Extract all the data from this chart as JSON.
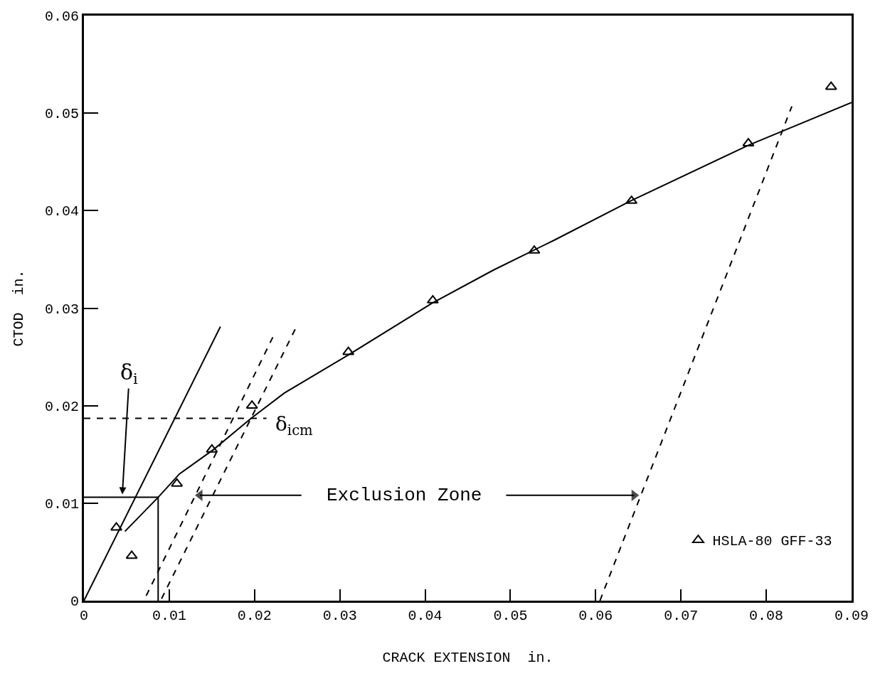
{
  "chart_data": {
    "type": "scatter",
    "xlabel": "CRACK EXTENSION  in.",
    "ylabel": "CTOD  in.",
    "xlim": [
      0,
      0.09
    ],
    "xticks": [
      0,
      0.01,
      0.02,
      0.03,
      0.04,
      0.05,
      0.06,
      0.07,
      0.08,
      0.09
    ],
    "ylim": [
      0,
      0.06
    ],
    "yticks": [
      0,
      0.01,
      0.02,
      0.03,
      0.04,
      0.05,
      0.06
    ],
    "grid": false,
    "legend": "bottom right",
    "series": [
      {
        "name": "HSLA-80 GFF-33",
        "type": "scatter",
        "marker": "triangle",
        "color": "#000000",
        "x": [
          0.0038,
          0.0056,
          0.0109,
          0.015,
          0.0197,
          0.031,
          0.0409,
          0.0528,
          0.0642,
          0.0779,
          0.0876
        ],
        "values": [
          0.0075,
          0.0046,
          0.012,
          0.0155,
          0.02,
          0.0255,
          0.0308,
          0.0359,
          0.041,
          0.0469,
          0.0527
        ]
      },
      {
        "type": "line",
        "marker": "none",
        "line_style": "solid",
        "color": "#000000",
        "x": [
          0.0048,
          0.0087,
          0.0112,
          0.0152,
          0.0196,
          0.0235,
          0.031,
          0.0408,
          0.048,
          0.0552,
          0.0641,
          0.0779,
          0.09
        ],
        "values": [
          0.0071,
          0.0106,
          0.013,
          0.0155,
          0.0187,
          0.0213,
          0.0252,
          0.0305,
          0.0339,
          0.037,
          0.041,
          0.0467,
          0.0511
        ]
      },
      {
        "type": "line",
        "marker": "none",
        "line_style": "solid",
        "color": "#000000",
        "x": [
          0,
          0.016
        ],
        "values": [
          0,
          0.0281
        ]
      },
      {
        "type": "line",
        "marker": "none",
        "line_style": "dashed",
        "color": "#000000",
        "x": [
          0.0073,
          0.0223
        ],
        "values": [
          0.0005,
          0.0273
        ]
      },
      {
        "type": "line",
        "marker": "none",
        "line_style": "dashed",
        "color": "#000000",
        "x": [
          0.0091,
          0.0248
        ],
        "values": [
          0.0002,
          0.0279
        ]
      },
      {
        "type": "line",
        "marker": "none",
        "line_style": "dashed",
        "color": "#000000",
        "x": [
          0.0605,
          0.083
        ],
        "values": [
          0,
          0.0507
        ]
      },
      {
        "type": "line",
        "marker": "none",
        "line_style": "dashed",
        "color": "#000000",
        "x": [
          0,
          0.0214
        ],
        "values": [
          0.0187,
          0.0187
        ]
      },
      {
        "type": "line",
        "marker": "none",
        "line_style": "solid",
        "color": "#000000",
        "x": [
          0,
          0.0087,
          0.0087
        ],
        "values": [
          0.0106,
          0.0106,
          0
        ]
      },
      {
        "type": "line",
        "marker": "triangle",
        "line_style": "solid",
        "color": "#000000",
        "x": [
          0.0136,
          0.0255,
          null,
          0.0495,
          0.0645
        ],
        "values": [
          0.0108,
          0.0108,
          null,
          0.0108,
          0.0108
        ]
      }
    ],
    "annotations": [
      {
        "text": "δ$_{i}$",
        "x": 0.0045,
        "y": 0.0109
      },
      {
        "text": "δ$_{icm}$",
        "x": 0.0214,
        "y": 0.0187
      },
      "Exclusion Zone"
    ]
  }
}
